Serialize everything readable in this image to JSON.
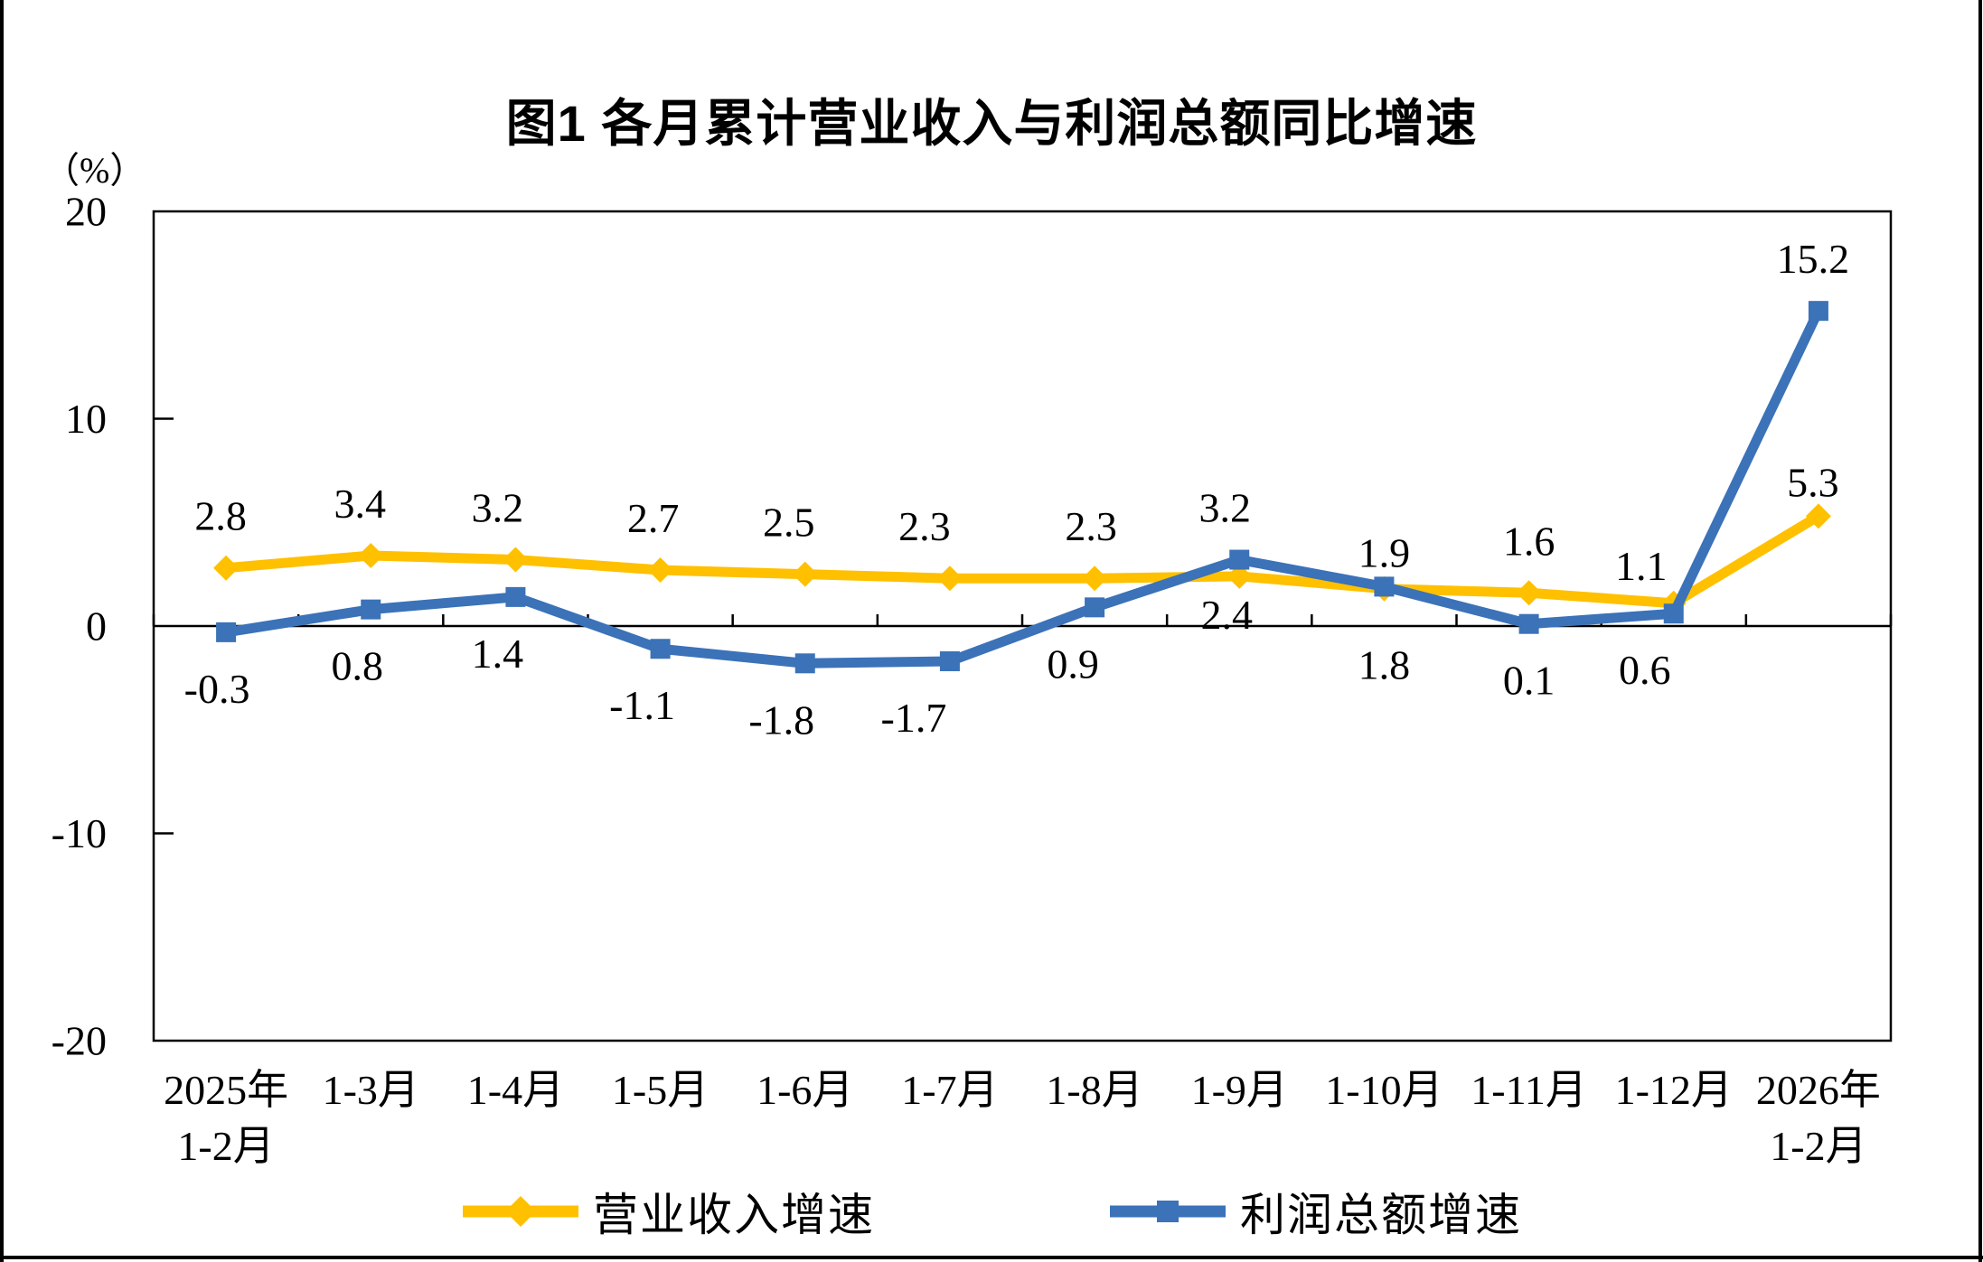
{
  "chart_data": {
    "type": "line",
    "title": "图1  各月累计营业收入与利润总额同比增速",
    "unit_label": "（%）",
    "categories": [
      [
        "2025年",
        "1-2月"
      ],
      [
        "1-3月"
      ],
      [
        "1-4月"
      ],
      [
        "1-5月"
      ],
      [
        "1-6月"
      ],
      [
        "1-7月"
      ],
      [
        "1-8月"
      ],
      [
        "1-9月"
      ],
      [
        "1-10月"
      ],
      [
        "1-11月"
      ],
      [
        "1-12月"
      ],
      [
        "2026年",
        "1-2月"
      ]
    ],
    "ylim": [
      -20,
      20
    ],
    "y_ticks": [
      20,
      10,
      0,
      -10,
      -20
    ],
    "grid": "none",
    "legend_position": "bottom",
    "axis_color": "#000000",
    "series": [
      {
        "id": "revenue",
        "name": "营业收入增速",
        "color": "#FFC000",
        "marker": "diamond",
        "values": [
          2.8,
          3.4,
          3.2,
          2.7,
          2.5,
          2.3,
          2.3,
          2.4,
          1.8,
          1.6,
          1.1,
          5.3
        ],
        "label_side": [
          "above",
          "above",
          "above",
          "above",
          "above",
          "above",
          "above",
          "below",
          "below",
          "above",
          "above",
          "above"
        ],
        "label_dx": [
          -6,
          -12,
          -20,
          -8,
          -18,
          -28,
          -4,
          -14,
          0,
          0,
          -36,
          -6
        ],
        "label_dy": [
          0,
          0,
          0,
          0,
          0,
          0,
          0,
          -20,
          22,
          0,
          16,
          20
        ]
      },
      {
        "id": "profit",
        "name": "利润总额增速",
        "color": "#3B72B8",
        "marker": "square",
        "values": [
          -0.3,
          0.8,
          1.4,
          -1.1,
          -1.8,
          -1.7,
          0.9,
          3.2,
          1.9,
          0.1,
          0.6,
          15.2
        ],
        "label_side": [
          "below",
          "below",
          "below",
          "below",
          "below",
          "below",
          "below",
          "above",
          "above",
          "below",
          "below",
          "above"
        ],
        "label_dx": [
          -10,
          -15,
          -20,
          -20,
          -26,
          -40,
          -24,
          -16,
          0,
          0,
          -32,
          -6
        ],
        "label_dy": [
          0,
          0,
          0,
          0,
          0,
          0,
          0,
          0,
          20,
          0,
          0,
          0
        ]
      }
    ]
  }
}
